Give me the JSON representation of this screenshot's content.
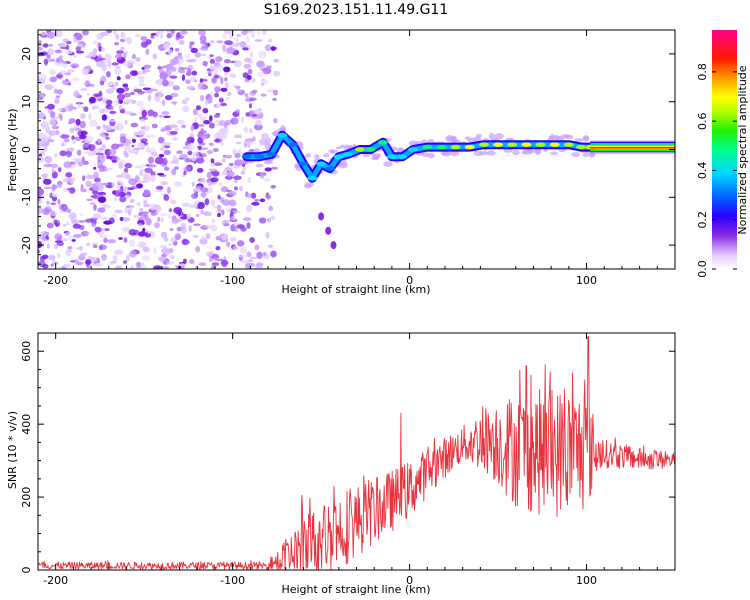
{
  "title": "S169.2023.151.11.49.G11",
  "chart_data": [
    {
      "type": "heatmap",
      "name": "spectrogram",
      "xlabel": "Height of straight line (km)",
      "ylabel": "Frequency (Hz)",
      "xlim": [
        -210,
        150
      ],
      "ylim": [
        -25,
        25
      ],
      "x_ticks": [
        -200,
        -100,
        0,
        100
      ],
      "y_ticks": [
        -20,
        -10,
        0,
        10,
        20
      ],
      "tick_labels_x": [
        "-200",
        "-100",
        "0",
        "100"
      ],
      "tick_labels_y": [
        "-20",
        "-10",
        "0",
        "10",
        "20"
      ],
      "noise_region_x": [
        -210,
        -75
      ],
      "signal_trace": [
        {
          "x": -92,
          "y": -1.5,
          "v": 0.4
        },
        {
          "x": -85,
          "y": -1.5,
          "v": 0.35
        },
        {
          "x": -78,
          "y": -1.0,
          "v": 0.4
        },
        {
          "x": -72,
          "y": 3.0,
          "v": 0.45
        },
        {
          "x": -66,
          "y": 1.0,
          "v": 0.35
        },
        {
          "x": -60,
          "y": -3.0,
          "v": 0.4
        },
        {
          "x": -55,
          "y": -6.0,
          "v": 0.45
        },
        {
          "x": -50,
          "y": -3.0,
          "v": 0.45
        },
        {
          "x": -45,
          "y": -4.0,
          "v": 0.4
        },
        {
          "x": -40,
          "y": -1.5,
          "v": 0.45
        },
        {
          "x": -35,
          "y": -1.0,
          "v": 0.5
        },
        {
          "x": -28,
          "y": 0.0,
          "v": 0.7
        },
        {
          "x": -22,
          "y": 0.0,
          "v": 0.6
        },
        {
          "x": -15,
          "y": 1.5,
          "v": 0.55
        },
        {
          "x": -10,
          "y": -1.5,
          "v": 0.45
        },
        {
          "x": -4,
          "y": -1.5,
          "v": 0.45
        },
        {
          "x": 2,
          "y": 0.0,
          "v": 0.5
        },
        {
          "x": 10,
          "y": 0.5,
          "v": 0.55
        },
        {
          "x": 18,
          "y": 0.5,
          "v": 0.6
        },
        {
          "x": 26,
          "y": 0.5,
          "v": 0.7
        },
        {
          "x": 34,
          "y": 0.5,
          "v": 0.75
        },
        {
          "x": 42,
          "y": 1.0,
          "v": 0.7
        },
        {
          "x": 50,
          "y": 1.0,
          "v": 0.75
        },
        {
          "x": 58,
          "y": 1.0,
          "v": 0.7
        },
        {
          "x": 66,
          "y": 1.0,
          "v": 0.75
        },
        {
          "x": 74,
          "y": 1.0,
          "v": 0.7
        },
        {
          "x": 82,
          "y": 1.0,
          "v": 0.75
        },
        {
          "x": 90,
          "y": 1.0,
          "v": 0.7
        },
        {
          "x": 97,
          "y": 0.5,
          "v": 0.65
        },
        {
          "x": 102,
          "y": 0.5,
          "v": 0.7
        }
      ],
      "spur": [
        {
          "x": -50,
          "y": -14
        },
        {
          "x": -46,
          "y": -17
        },
        {
          "x": -43,
          "y": -20
        }
      ],
      "steady_band": {
        "x_start": 102,
        "x_end": 150,
        "y": 0.5
      }
    },
    {
      "type": "line",
      "name": "snr",
      "xlabel": "Height of straight line (km)",
      "ylabel": "SNR (10 * v/v)",
      "xlim": [
        -210,
        150
      ],
      "ylim": [
        0,
        650
      ],
      "x_ticks": [
        -200,
        -100,
        0,
        100
      ],
      "y_ticks": [
        0,
        200,
        400,
        600
      ],
      "tick_labels_x": [
        "-200",
        "-100",
        "0",
        "100"
      ],
      "tick_labels_y": [
        "0",
        "200",
        "400",
        "600"
      ],
      "color": "#e8323c",
      "envelope": [
        {
          "x": -210,
          "base": 12,
          "amp": 10
        },
        {
          "x": -80,
          "base": 12,
          "amp": 10
        },
        {
          "x": -60,
          "base": 60,
          "amp": 90
        },
        {
          "x": -40,
          "base": 110,
          "amp": 110
        },
        {
          "x": -20,
          "base": 160,
          "amp": 90
        },
        {
          "x": 0,
          "base": 220,
          "amp": 80
        },
        {
          "x": 15,
          "base": 290,
          "amp": 60
        },
        {
          "x": 30,
          "base": 345,
          "amp": 50
        },
        {
          "x": 45,
          "base": 360,
          "amp": 100
        },
        {
          "x": 60,
          "base": 330,
          "amp": 160
        },
        {
          "x": 80,
          "base": 320,
          "amp": 180
        },
        {
          "x": 100,
          "base": 330,
          "amp": 170
        },
        {
          "x": 108,
          "base": 320,
          "amp": 40
        },
        {
          "x": 130,
          "base": 305,
          "amp": 30
        },
        {
          "x": 150,
          "base": 300,
          "amp": 25
        }
      ],
      "peaks": [
        {
          "x": -61,
          "y": 205
        },
        {
          "x": -5,
          "y": 430
        },
        {
          "x": 66,
          "y": 560
        },
        {
          "x": 101,
          "y": 640
        }
      ]
    }
  ],
  "colorbar": {
    "label": "Normalized spectral amplitude",
    "ticks": [
      0.0,
      0.2,
      0.4,
      0.6,
      0.8
    ],
    "tick_labels": [
      "0.0",
      "0.2",
      "0.4",
      "0.6",
      "0.8"
    ],
    "range": [
      0,
      0.97
    ]
  }
}
